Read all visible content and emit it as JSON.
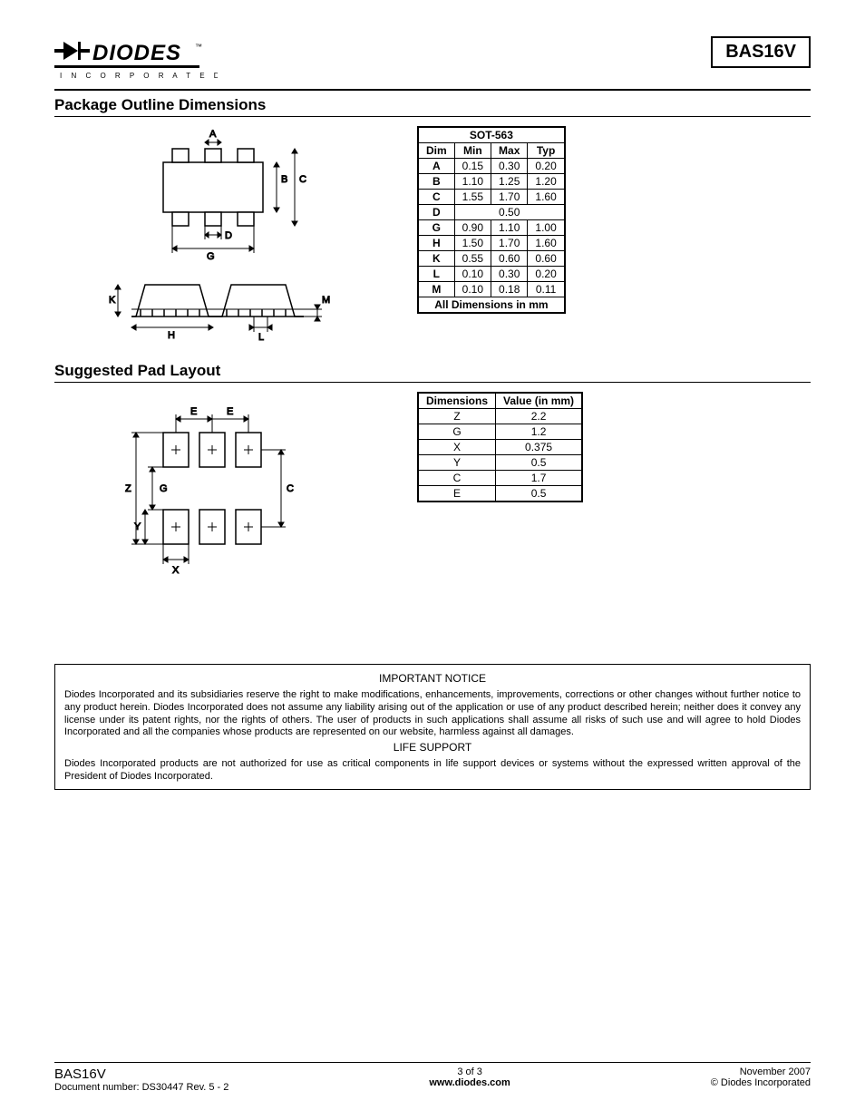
{
  "header": {
    "part_number": "BAS16V",
    "logo_top": "DIODES",
    "logo_sub": "I N C O R P O R A T E D"
  },
  "section1": {
    "title": "Package Outline Dimensions",
    "table": {
      "title": "SOT-563",
      "headers": [
        "Dim",
        "Min",
        "Max",
        "Typ"
      ],
      "rows": [
        {
          "dim": "A",
          "min": "0.15",
          "max": "0.30",
          "typ": "0.20"
        },
        {
          "dim": "B",
          "min": "1.10",
          "max": "1.25",
          "typ": "1.20"
        },
        {
          "dim": "C",
          "min": "1.55",
          "max": "1.70",
          "typ": "1.60"
        },
        {
          "dim": "D",
          "span": "0.50"
        },
        {
          "dim": "G",
          "min": "0.90",
          "max": "1.10",
          "typ": "1.00"
        },
        {
          "dim": "H",
          "min": "1.50",
          "max": "1.70",
          "typ": "1.60"
        },
        {
          "dim": "K",
          "min": "0.55",
          "max": "0.60",
          "typ": "0.60"
        },
        {
          "dim": "L",
          "min": "0.10",
          "max": "0.30",
          "typ": "0.20"
        },
        {
          "dim": "M",
          "min": "0.10",
          "max": "0.18",
          "typ": "0.11"
        }
      ],
      "footer": "All Dimensions in mm"
    },
    "diagram_labels": {
      "A": "A",
      "B": "B",
      "C": "C",
      "D": "D",
      "G": "G",
      "H": "H",
      "K": "K",
      "L": "L",
      "M": "M"
    }
  },
  "section2": {
    "title": "Suggested Pad Layout",
    "table": {
      "headers": [
        "Dimensions",
        "Value (in mm)"
      ],
      "rows": [
        {
          "d": "Z",
          "v": "2.2"
        },
        {
          "d": "G",
          "v": "1.2"
        },
        {
          "d": "X",
          "v": "0.375"
        },
        {
          "d": "Y",
          "v": "0.5"
        },
        {
          "d": "C",
          "v": "1.7"
        },
        {
          "d": "E",
          "v": "0.5"
        }
      ]
    },
    "diagram_labels": {
      "E": "E",
      "Z": "Z",
      "G": "G",
      "C": "C",
      "Y": "Y",
      "X": "X"
    }
  },
  "notice": {
    "title1": "IMPORTANT NOTICE",
    "text1": "Diodes Incorporated and its subsidiaries reserve the right to make modifications, enhancements, improvements, corrections or other changes without further notice to any product herein. Diodes Incorporated does not assume any liability arising out of the application or use of any product described herein; neither does it convey any license under its patent rights, nor the rights of others. The user of products in such applications shall assume all risks of such use and will agree to hold Diodes Incorporated and all the companies whose products are represented on our website, harmless against all damages.",
    "title2": "LIFE SUPPORT",
    "text2": "Diodes Incorporated products are not authorized for use as critical components in life support devices or systems without the expressed written approval of the President of Diodes Incorporated."
  },
  "footer": {
    "part": "BAS16V",
    "docnum": "Document number: DS30447 Rev. 5 - 2",
    "page": "3 of 3",
    "url": "www.diodes.com",
    "date": "November 2007",
    "copyright": "© Diodes Incorporated"
  }
}
